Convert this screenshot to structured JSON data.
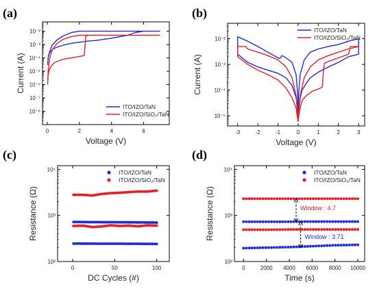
{
  "chart_data": [
    {
      "panel": "(a)",
      "type": "line",
      "xlabel": "Voltage (V)",
      "ylabel": "Current (A)",
      "x_scale": "linear",
      "y_scale": "log",
      "xlim": [
        -0.3,
        7.6
      ],
      "ylim": [
        1e-09,
        0.05
      ],
      "xticks": [
        0,
        2,
        4,
        6
      ],
      "yticks": [
        1e-08,
        1e-07,
        1e-06,
        1e-05,
        0.0001,
        0.001,
        0.01
      ],
      "ytick_labels": [
        "10⁻⁸",
        "10⁻⁷",
        "10⁻⁶",
        "10⁻⁵",
        "10⁻⁴",
        "10⁻³",
        "10⁻²"
      ],
      "grid": false,
      "legend_position": "bottom-right",
      "series": [
        {
          "name": "ITO/IZO/TaN",
          "color": "#1f2bd6",
          "x": [
            0.02,
            0.05,
            0.1,
            0.2,
            0.4,
            0.7,
            1.0,
            1.3,
            1.6,
            2.0,
            2.5,
            3.0,
            4.0,
            5.0,
            5.5,
            6.0,
            7.0,
            7.0,
            6.0,
            5.0,
            4.0,
            3.0,
            2.0,
            1.5,
            1.0,
            0.6,
            0.3,
            0.15,
            0.05,
            0.02
          ],
          "y": [
            3e-05,
            0.0001,
            0.0002,
            0.0003,
            0.0005,
            0.0007,
            0.0009,
            0.0011,
            0.0013,
            0.0015,
            0.0018,
            0.002,
            0.003,
            0.005,
            0.008,
            0.01,
            0.01,
            0.01,
            0.01,
            0.01,
            0.01,
            0.01,
            0.01,
            0.008,
            0.0045,
            0.0022,
            0.0009,
            0.0003,
            0.0001,
            3e-05
          ]
        },
        {
          "name": "ITO/IZO/SiO₂/TaN",
          "color": "#e32028",
          "x": [
            0.02,
            0.05,
            0.1,
            0.2,
            0.4,
            0.7,
            1.0,
            1.5,
            2.0,
            2.3,
            2.4,
            2.5,
            3.0,
            4.0,
            5.0,
            6.0,
            7.0,
            7.0,
            6.0,
            5.0,
            4.0,
            3.0,
            2.0,
            1.5,
            1.0,
            0.6,
            0.3,
            0.15,
            0.05,
            0.02
          ],
          "y": [
            1e-06,
            5e-06,
            1e-05,
            2e-05,
            4e-05,
            6e-05,
            8e-05,
            0.0001,
            0.00013,
            0.00015,
            0.004,
            0.005,
            0.005,
            0.005,
            0.005,
            0.005,
            0.005,
            0.005,
            0.005,
            0.005,
            0.005,
            0.005,
            0.005,
            0.004,
            0.0025,
            0.0012,
            0.0004,
            0.0001,
            1e-05,
            1e-06
          ]
        }
      ]
    },
    {
      "panel": "(b)",
      "type": "line",
      "xlabel": "Voltage (V)",
      "ylabel": "Current (A)",
      "x_scale": "linear",
      "y_scale": "log",
      "xlim": [
        -3.5,
        3.3
      ],
      "ylim": [
        4e-06,
        0.04
      ],
      "xticks": [
        -3,
        -2,
        -1,
        0,
        1,
        2,
        3
      ],
      "yticks": [
        1e-05,
        0.0001,
        0.001,
        0.01
      ],
      "ytick_labels": [
        "10⁻⁵",
        "10⁻⁴",
        "10⁻³",
        "10⁻²"
      ],
      "grid": false,
      "legend_position": "top-right",
      "series": [
        {
          "name": "ITO/IZO/TaN",
          "color": "#1f2bd6",
          "x": [
            0,
            0.05,
            0.1,
            0.2,
            0.4,
            0.6,
            1.0,
            1.5,
            2.0,
            2.5,
            3.0,
            3.0,
            2.5,
            2.0,
            1.5,
            1.0,
            0.6,
            0.3,
            0.1,
            0.03,
            0,
            -0.03,
            -0.1,
            -0.3,
            -0.6,
            -0.8,
            -0.9,
            -1.0,
            -1.5,
            -2.0,
            -2.5,
            -3.0,
            -3.0,
            -2.5,
            -2.0,
            -1.5,
            -1.0,
            -0.6,
            -0.3,
            -0.1,
            -0.05,
            0
          ],
          "y": [
            6e-06,
            2e-05,
            5e-05,
            0.0001,
            0.00018,
            0.0003,
            0.0005,
            0.0008,
            0.0012,
            0.002,
            0.0025,
            0.01,
            0.008,
            0.006,
            0.005,
            0.004,
            0.003,
            0.0015,
            0.0004,
            8e-05,
            6e-06,
            8e-05,
            0.0004,
            0.0012,
            0.0018,
            0.0022,
            0.0017,
            0.0018,
            0.003,
            0.005,
            0.008,
            0.012,
            0.0025,
            0.0012,
            0.0008,
            0.0006,
            0.00045,
            0.0003,
            0.00015,
            5e-05,
            2e-05,
            6e-06
          ]
        },
        {
          "name": "ITO/IZO/SiO₂/TaN",
          "color": "#e32028",
          "x": [
            0,
            0.05,
            0.1,
            0.2,
            0.4,
            0.7,
            1.0,
            1.2,
            1.25,
            1.3,
            1.5,
            2.0,
            2.5,
            2.6,
            3.0,
            3.0,
            2.5,
            2.0,
            1.5,
            1.0,
            0.6,
            0.3,
            0.1,
            0.03,
            0,
            -0.03,
            -0.1,
            -0.3,
            -0.6,
            -1.0,
            -1.5,
            -2.0,
            -2.5,
            -2.6,
            -3.0,
            -3.0,
            -2.5,
            -2.0,
            -1.5,
            -1.0,
            -0.6,
            -0.3,
            -0.1,
            -0.05,
            0
          ],
          "y": [
            6e-06,
            1.2e-05,
            2e-05,
            4e-05,
            6e-05,
            9e-05,
            0.00011,
            0.00013,
            0.0005,
            0.0011,
            0.0013,
            0.0018,
            0.0025,
            0.005,
            0.005,
            0.005,
            0.004,
            0.003,
            0.0022,
            0.0015,
            0.0008,
            0.0003,
            6e-05,
            1.5e-05,
            6e-06,
            1.5e-05,
            6e-05,
            0.0003,
            0.0008,
            0.0015,
            0.0022,
            0.003,
            0.004,
            0.005,
            0.005,
            0.002,
            0.001,
            0.0006,
            0.0004,
            0.00025,
            0.00012,
            5e-05,
            2e-05,
            1e-05,
            6e-06
          ]
        }
      ]
    },
    {
      "panel": "(c)",
      "type": "scatter",
      "xlabel": "DC Cycles (#)",
      "ylabel": "Resistance (Ω)",
      "x_scale": "linear",
      "y_scale": "log",
      "xlim": [
        -18,
        115
      ],
      "ylim": [
        100,
        12000
      ],
      "xticks": [
        0,
        50,
        100
      ],
      "yticks": [
        100,
        1000,
        10000
      ],
      "ytick_labels": [
        "10²",
        "10³",
        "10⁴"
      ],
      "grid": false,
      "legend_position": "top-right",
      "series": [
        {
          "name": "ITO/IZO/TaN",
          "color": "#1f2bd6",
          "state": "HRS",
          "x_range": [
            1,
            100
          ],
          "values": [
            720,
            715,
            712,
            710,
            705,
            700
          ]
        },
        {
          "name": "ITO/IZO/TaN",
          "color": "#1f2bd6",
          "state": "LRS",
          "x_range": [
            1,
            100
          ],
          "values": [
            245,
            244,
            243,
            243,
            242,
            240
          ]
        },
        {
          "name": "ITO/IZO/SiO₂/TaN",
          "color": "#e32028",
          "state": "HRS",
          "x_range": [
            1,
            100
          ],
          "values": [
            2800,
            2800,
            2700,
            2900,
            3050,
            3100,
            3200,
            3300,
            3300,
            3450
          ]
        },
        {
          "name": "ITO/IZO/SiO₂/TaN",
          "color": "#e32028",
          "state": "LRS",
          "x_range": [
            1,
            100
          ],
          "values": [
            590,
            600,
            560,
            575,
            610,
            590,
            600,
            580,
            610,
            600
          ]
        }
      ]
    },
    {
      "panel": "(d)",
      "type": "scatter",
      "xlabel": "Time (s)",
      "ylabel": "Resistance (Ω)",
      "x_scale": "linear",
      "y_scale": "log",
      "xlim": [
        -800,
        10600
      ],
      "ylim": [
        100,
        12000
      ],
      "xticks": [
        0,
        2000,
        4000,
        6000,
        8000,
        10000
      ],
      "yticks": [
        100,
        1000,
        10000
      ],
      "ytick_labels": [
        "10²",
        "10³",
        "10⁴"
      ],
      "grid": false,
      "legend_position": "top-right",
      "series": [
        {
          "name": "ITO/IZO/TaN",
          "color": "#1f2bd6",
          "state": "HRS",
          "x_range": [
            0,
            10000
          ],
          "values": [
            730,
            730,
            730,
            735,
            735,
            735
          ]
        },
        {
          "name": "ITO/IZO/TaN",
          "color": "#1f2bd6",
          "state": "LRS",
          "x_range": [
            0,
            10000
          ],
          "values": [
            195,
            200,
            205,
            215,
            225,
            230
          ]
        },
        {
          "name": "ITO/IZO/SiO₂/TaN",
          "color": "#e32028",
          "state": "HRS",
          "x_range": [
            0,
            10000
          ],
          "values": [
            2300,
            2300,
            2300,
            2300,
            2300,
            2300
          ]
        },
        {
          "name": "ITO/IZO/SiO₂/TaN",
          "color": "#e32028",
          "state": "LRS",
          "x_range": [
            0,
            10000
          ],
          "values": [
            490,
            490,
            495,
            495,
            495,
            495
          ]
        }
      ],
      "annotations": [
        {
          "text": "Window : 4.7",
          "color": "#e32028",
          "x": 4600,
          "y_from": 730,
          "y_to": 2300
        },
        {
          "text": "Window : 3.71",
          "color": "#1f2bd6",
          "x": 5000,
          "y_from": 200,
          "y_to": 730
        }
      ]
    }
  ]
}
